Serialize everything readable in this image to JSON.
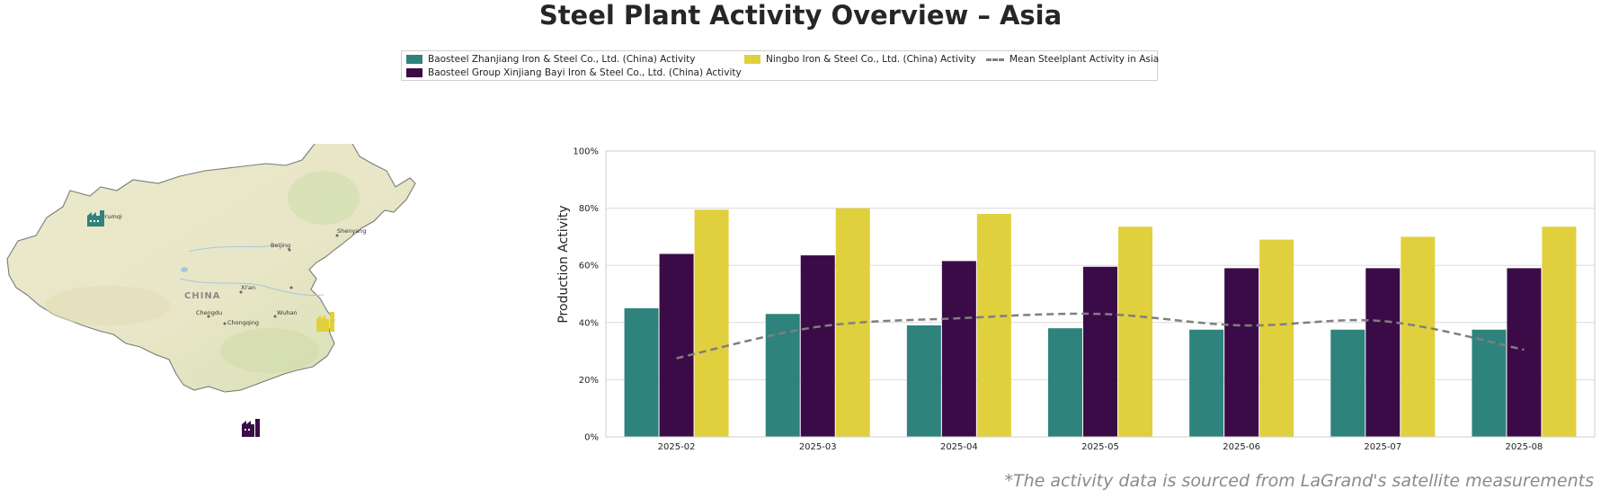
{
  "title": "Steel Plant Activity Overview – Asia",
  "footnote": "*The activity data is sourced from LaGrand's satellite measurements",
  "legend": {
    "items": [
      {
        "label": "Baosteel Zhanjiang Iron & Steel Co., Ltd. (China) Activity",
        "color": "#2e837c",
        "kind": "bar"
      },
      {
        "label": "Baosteel Group Xinjiang Bayi Iron & Steel Co., Ltd. (China) Activity",
        "color": "#3b0b47",
        "kind": "bar"
      },
      {
        "label": "Ningbo Iron & Steel Co., Ltd. (China) Activity",
        "color": "#e1d03d",
        "kind": "bar"
      },
      {
        "label": "Mean Steelplant Activity in Asia",
        "color": "#7f7f7f",
        "kind": "dashed-line"
      }
    ]
  },
  "map": {
    "country_label": "CHINA",
    "cities": [
      "Urumqi",
      "Beijing",
      "Shenyang",
      "Xi'an",
      "Chengdu",
      "Chongqing",
      "Wuhan"
    ],
    "plant_markers": [
      {
        "name": "Baosteel Group Xinjiang Bayi Iron & Steel Co., Ltd.",
        "color": "#2e837c"
      },
      {
        "name": "Ningbo Iron & Steel Co., Ltd.",
        "color": "#e1d03d"
      },
      {
        "name": "Baosteel Zhanjiang Iron & Steel Co., Ltd.",
        "color": "#3b0b47"
      }
    ]
  },
  "chart_data": {
    "type": "bar",
    "ylabel": "Production Activity",
    "ylim": [
      0,
      100
    ],
    "yticks": [
      "0%",
      "20%",
      "40%",
      "60%",
      "80%",
      "100%"
    ],
    "grid": true,
    "categories": [
      "2025-02",
      "2025-03",
      "2025-04",
      "2025-05",
      "2025-06",
      "2025-07",
      "2025-08"
    ],
    "series": [
      {
        "name": "Baosteel Zhanjiang Iron & Steel Co., Ltd. (China) Activity",
        "color": "#2e837c",
        "values": [
          45,
          43,
          39,
          38,
          37.5,
          37.5,
          37.5
        ]
      },
      {
        "name": "Baosteel Group Xinjiang Bayi Iron & Steel Co., Ltd. (China) Activity",
        "color": "#3b0b47",
        "values": [
          64,
          63.5,
          61.5,
          59.5,
          59,
          59,
          59
        ]
      },
      {
        "name": "Ningbo Iron & Steel Co., Ltd. (China) Activity",
        "color": "#e1d03d",
        "values": [
          79.5,
          80,
          78,
          73.5,
          69,
          70,
          73.5
        ]
      }
    ],
    "mean_line": {
      "name": "Mean Steelplant Activity in Asia",
      "color": "#7f7f7f",
      "values": [
        27.5,
        38.5,
        41.5,
        43,
        39,
        40.5,
        30.5
      ]
    }
  }
}
